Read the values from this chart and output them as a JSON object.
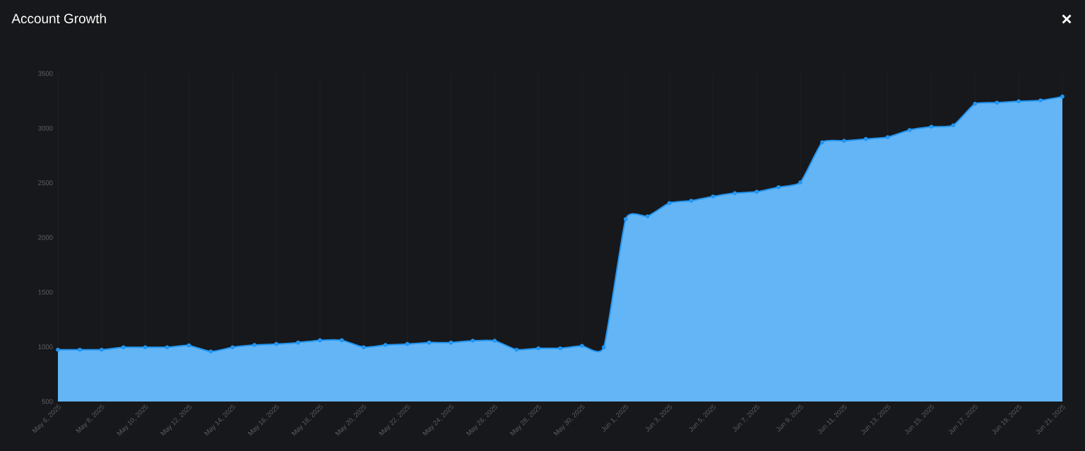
{
  "chart_data": {
    "type": "area",
    "title": "Account Growth",
    "annotations": [
      "×"
    ],
    "categories": [
      "May 6, 2025",
      null,
      "May 8, 2025",
      null,
      "May 10, 2025",
      null,
      "May 12, 2025",
      null,
      "May 14, 2025",
      null,
      "May 16, 2025",
      null,
      "May 18, 2025",
      null,
      "May 20, 2025",
      null,
      "May 22, 2025",
      null,
      "May 24, 2025",
      null,
      "May 26, 2025",
      null,
      "May 28, 2025",
      null,
      "May 30, 2025",
      null,
      "Jun 1, 2025",
      null,
      "Jun 3, 2025",
      null,
      "Jun 5, 2025",
      null,
      "Jun 7, 2025",
      null,
      "Jun 9, 2025",
      null,
      "Jun 11, 2025",
      null,
      "Jun 13, 2025",
      null,
      "Jun 15, 2025",
      null,
      "Jun 17, 2025",
      null,
      "Jun 19, 2025",
      null,
      "Jun 21, 2025"
    ],
    "series": [
      {
        "color": "#64b5f6",
        "values": [
          974,
          974,
          974,
          996,
          996,
          996,
          1013,
          957,
          996,
          1017,
          1026,
          1039,
          1060,
          1060,
          996,
          1017,
          1026,
          1039,
          1039,
          1056,
          1056,
          974,
          987,
          987,
          1009,
          996,
          2168,
          2194,
          2315,
          2336,
          2375,
          2405,
          2418,
          2461,
          2504,
          2871,
          2884,
          2901,
          2918,
          2983,
          3013,
          3026,
          3224,
          3233,
          3246,
          3254,
          3289
        ]
      }
    ],
    "ylim": [
      500,
      3500
    ],
    "yticks": [
      500,
      1000,
      1500,
      2000,
      2500,
      3000,
      3500
    ],
    "grid": "x",
    "marker": "circle",
    "line_style": "solid"
  }
}
